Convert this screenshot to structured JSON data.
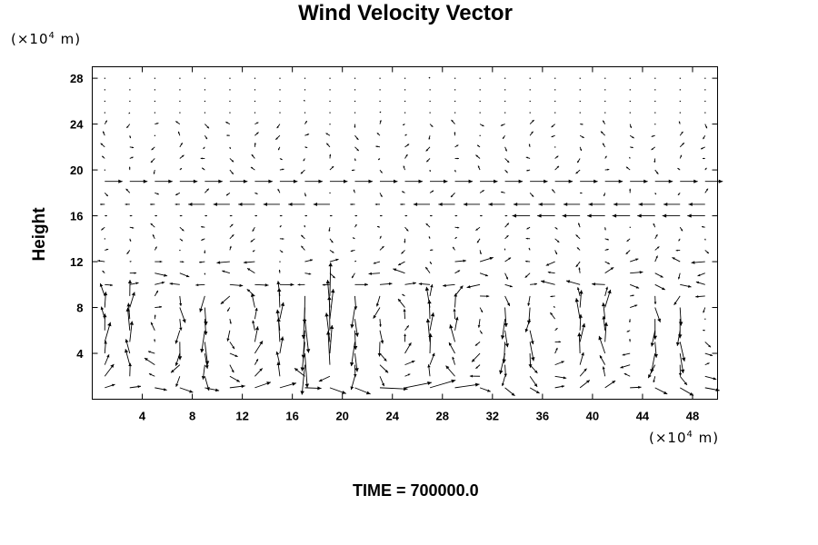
{
  "chart_data": {
    "type": "vector-field",
    "title": "Wind Velocity Vector",
    "ylabel": "Height",
    "y_unit": {
      "prefix": "(×10",
      "exp": "4",
      "suffix": " m)"
    },
    "x_unit": {
      "prefix": "(×10",
      "exp": "4",
      "suffix": " m)"
    },
    "xlim": [
      0,
      50
    ],
    "ylim": [
      0,
      29
    ],
    "xticks": [
      4,
      8,
      12,
      16,
      20,
      24,
      28,
      32,
      36,
      40,
      44,
      48
    ],
    "yticks": [
      4,
      8,
      12,
      16,
      20,
      24,
      28
    ],
    "grid": false,
    "arrow_color": "#000000",
    "annotation": "TIME = 700000.0",
    "sampled_vectors": [
      {
        "x": 1,
        "y": 19,
        "u": 1.0,
        "v": 0.0
      },
      {
        "x": 6,
        "y": 19,
        "u": 1.0,
        "v": 0.0
      },
      {
        "x": 12,
        "y": 19,
        "u": 1.0,
        "v": 0.0
      },
      {
        "x": 18,
        "y": 19,
        "u": 1.0,
        "v": 0.0
      },
      {
        "x": 24,
        "y": 19,
        "u": 1.0,
        "v": 0.0
      },
      {
        "x": 30,
        "y": 19,
        "u": 0.6,
        "v": 0.0
      },
      {
        "x": 36,
        "y": 19,
        "u": 1.0,
        "v": 0.0
      },
      {
        "x": 42,
        "y": 19,
        "u": 1.0,
        "v": 0.0
      },
      {
        "x": 48,
        "y": 19,
        "u": 1.0,
        "v": 0.0
      },
      {
        "x": 12,
        "y": 17,
        "u": -1.0,
        "v": 0.0
      },
      {
        "x": 20,
        "y": 17,
        "u": -1.0,
        "v": 0.0
      },
      {
        "x": 30,
        "y": 17,
        "u": -1.0,
        "v": 0.0
      },
      {
        "x": 40,
        "y": 16,
        "u": -1.0,
        "v": 0.0
      },
      {
        "x": 48,
        "y": 17,
        "u": -1.0,
        "v": 0.0
      },
      {
        "x": 18,
        "y": 6,
        "u": 0.0,
        "v": -1.2
      },
      {
        "x": 20,
        "y": 6,
        "u": 0.0,
        "v": 1.2
      },
      {
        "x": 26,
        "y": 4,
        "u": 0.6,
        "v": -0.8
      },
      {
        "x": 30,
        "y": 3,
        "u": 0.0,
        "v": 1.0
      }
    ]
  }
}
